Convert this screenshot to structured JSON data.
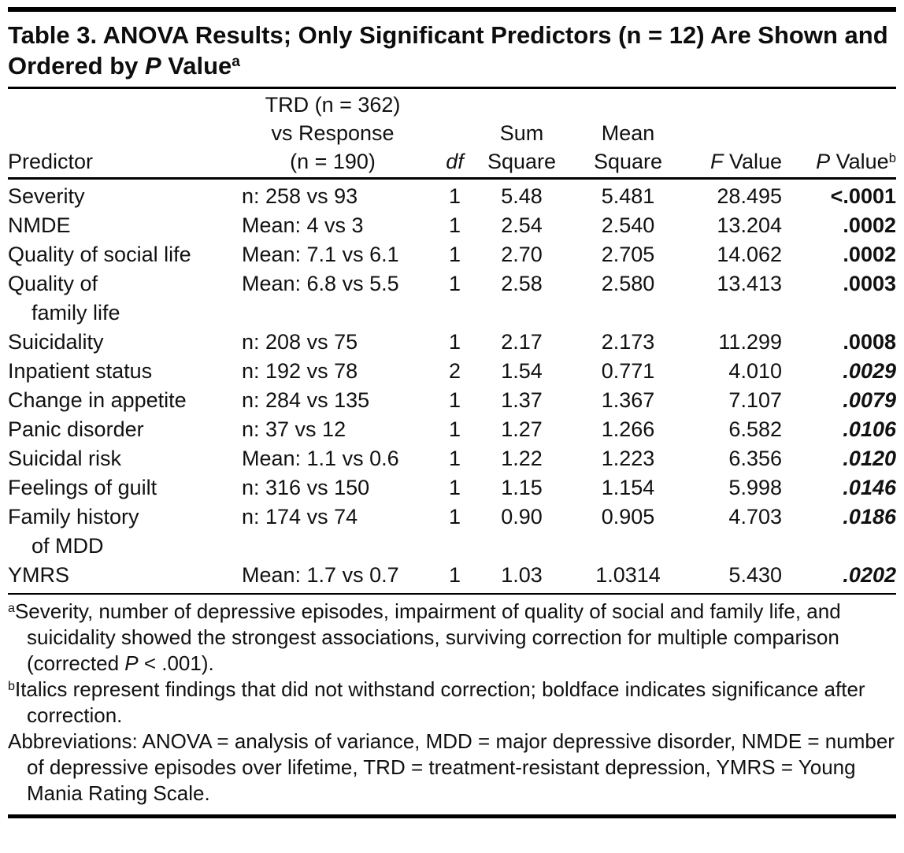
{
  "title": {
    "part1": "Table 3. ANOVA Results; Only Significant Predictors (n = 12) Are Shown and Ordered by ",
    "p_italic": "P",
    "part2": " Value",
    "sup": "a"
  },
  "table": {
    "headers": {
      "predictor": "Predictor",
      "comparison": [
        "TRD (n = 362)",
        "vs Response",
        "(n = 190)"
      ],
      "df": "df",
      "sum": [
        "Sum",
        "Square"
      ],
      "mean": [
        "Mean",
        "Square"
      ],
      "f_italic": "F",
      "f_rest": " Value",
      "p_italic": "P",
      "p_rest": " Value",
      "p_sup": "b"
    },
    "rows": [
      {
        "predictor": [
          "Severity"
        ],
        "comparison": "n: 258 vs 93",
        "df": "1",
        "sum_square": "5.48",
        "mean_square": "5.481",
        "f_value": "28.495",
        "p_value": "<.0001",
        "p_style": "bold"
      },
      {
        "predictor": [
          "NMDE"
        ],
        "comparison": "Mean: 4 vs 3",
        "df": "1",
        "sum_square": "2.54",
        "mean_square": "2.540",
        "f_value": "13.204",
        "p_value": ".0002",
        "p_style": "bold"
      },
      {
        "predictor": [
          "Quality of social life"
        ],
        "comparison": "Mean: 7.1 vs 6.1",
        "df": "1",
        "sum_square": "2.70",
        "mean_square": "2.705",
        "f_value": "14.062",
        "p_value": ".0002",
        "p_style": "bold"
      },
      {
        "predictor": [
          "Quality of",
          "family life"
        ],
        "comparison": "Mean: 6.8 vs 5.5",
        "df": "1",
        "sum_square": "2.58",
        "mean_square": "2.580",
        "f_value": "13.413",
        "p_value": ".0003",
        "p_style": "bold"
      },
      {
        "predictor": [
          "Suicidality"
        ],
        "comparison": "n: 208 vs 75",
        "df": "1",
        "sum_square": "2.17",
        "mean_square": "2.173",
        "f_value": "11.299",
        "p_value": ".0008",
        "p_style": "bold"
      },
      {
        "predictor": [
          "Inpatient status"
        ],
        "comparison": "n: 192 vs 78",
        "df": "2",
        "sum_square": "1.54",
        "mean_square": "0.771",
        "f_value": "4.010",
        "p_value": ".0029",
        "p_style": "bold-italic"
      },
      {
        "predictor": [
          "Change in appetite"
        ],
        "comparison": "n: 284 vs 135",
        "df": "1",
        "sum_square": "1.37",
        "mean_square": "1.367",
        "f_value": "7.107",
        "p_value": ".0079",
        "p_style": "bold-italic"
      },
      {
        "predictor": [
          "Panic disorder"
        ],
        "comparison": "n: 37 vs 12",
        "df": "1",
        "sum_square": "1.27",
        "mean_square": "1.266",
        "f_value": "6.582",
        "p_value": ".0106",
        "p_style": "bold-italic"
      },
      {
        "predictor": [
          "Suicidal risk"
        ],
        "comparison": "Mean: 1.1 vs 0.6",
        "df": "1",
        "sum_square": "1.22",
        "mean_square": "1.223",
        "f_value": "6.356",
        "p_value": ".0120",
        "p_style": "bold-italic"
      },
      {
        "predictor": [
          "Feelings of guilt"
        ],
        "comparison": "n: 316 vs 150",
        "df": "1",
        "sum_square": "1.15",
        "mean_square": "1.154",
        "f_value": "5.998",
        "p_value": ".0146",
        "p_style": "bold-italic"
      },
      {
        "predictor": [
          "Family history",
          "of MDD"
        ],
        "comparison": "n: 174 vs 74",
        "df": "1",
        "sum_square": "0.90",
        "mean_square": "0.905",
        "f_value": "4.703",
        "p_value": ".0186",
        "p_style": "bold-italic"
      },
      {
        "predictor": [
          "YMRS"
        ],
        "comparison": "Mean: 1.7 vs 0.7",
        "df": "1",
        "sum_square": "1.03",
        "mean_square": "1.0314",
        "f_value": "5.430",
        "p_value": ".0202",
        "p_style": "bold-italic"
      }
    ]
  },
  "footnotes": {
    "a": {
      "sup": "a",
      "text1": "Severity, number of depressive episodes, impairment of quality of social and family life, and suicidality showed the strongest associations, surviving correction for multiple comparison (corrected ",
      "italic": "P",
      "text2": " < .001)."
    },
    "b": {
      "sup": "b",
      "text": "Italics represent findings that did not withstand correction; boldface indicates significance after correction."
    },
    "abbreviations": "Abbreviations: ANOVA = analysis of variance, MDD = major depressive disorder, NMDE = number of depressive episodes over lifetime, TRD = treatment-resistant depression, YMRS = Young Mania Rating Scale."
  }
}
